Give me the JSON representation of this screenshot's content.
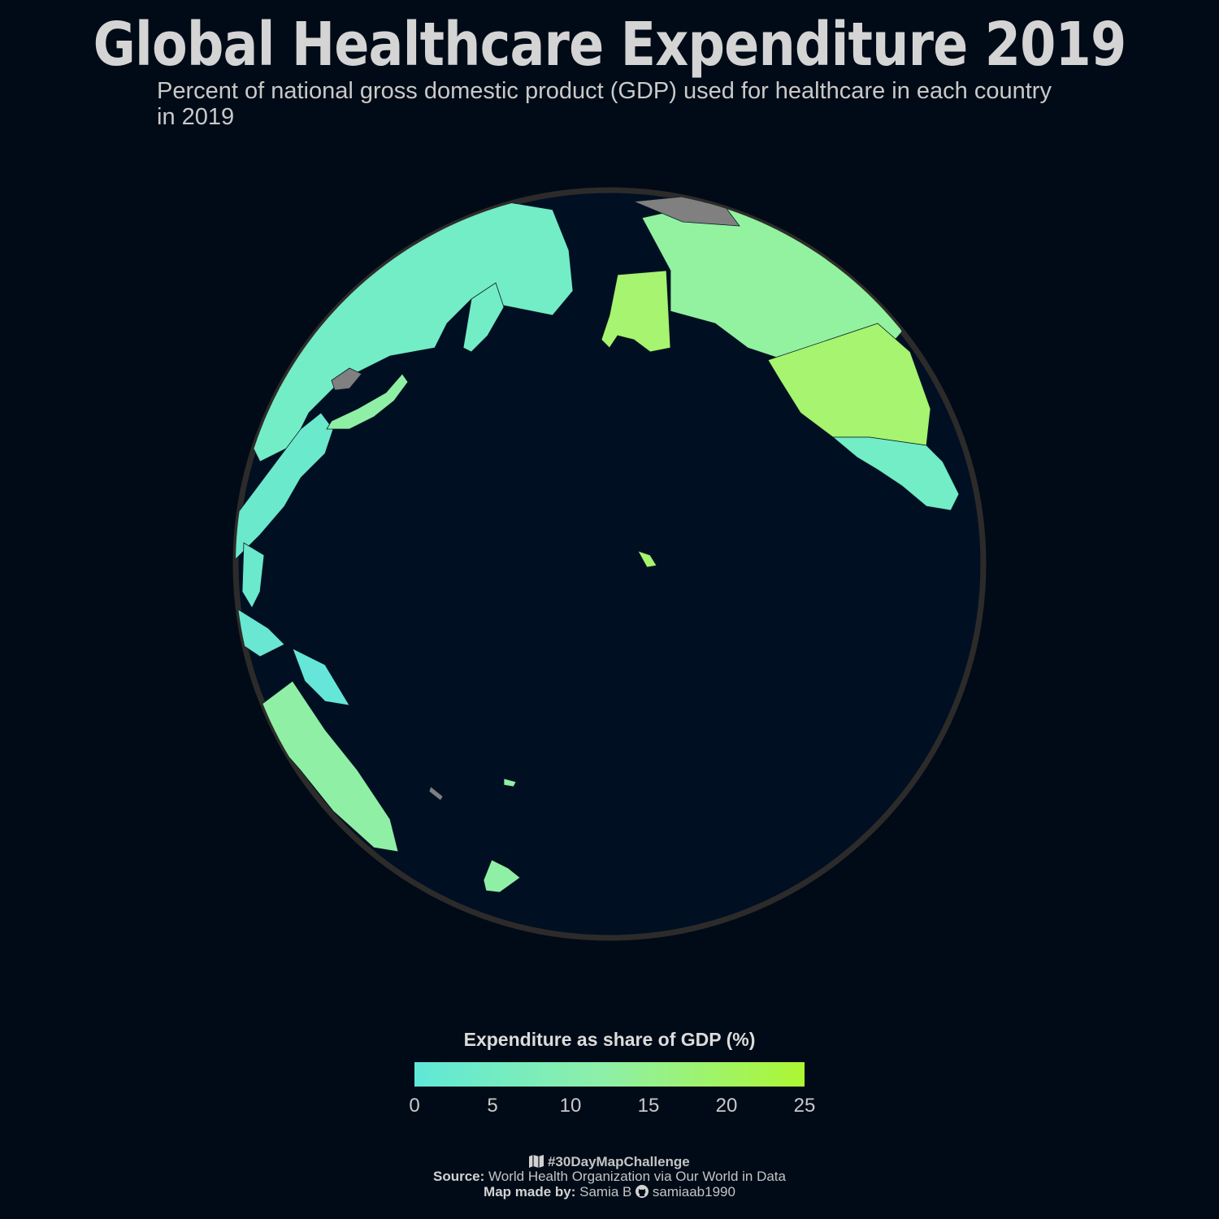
{
  "header": {
    "title": "Global Healthcare Expenditure 2019",
    "subtitle": "Percent of national gross domestic product (GDP) used for healthcare in each country in 2019"
  },
  "legend": {
    "title": "Expenditure as share of GDP (%)",
    "ticks": [
      "0",
      "5",
      "10",
      "15",
      "20",
      "25"
    ],
    "color_low": "#5fe8d8",
    "color_high": "#adf733"
  },
  "caption": {
    "hashtag": "#30DayMapChallenge",
    "source_label": "Source:",
    "source_text": "World Health Organization via Our World in Data",
    "author_label": "Map made by:",
    "author_name": "Samia B",
    "author_handle": "samiaab1990"
  },
  "colors": {
    "background": "#000b17",
    "ocean": "#010f22",
    "globe_outline": "#2d2b2a",
    "no_data": "#808080"
  },
  "map": {
    "projection": "orthographic",
    "center": "Pacific Ocean",
    "regions": [
      {
        "name": "Russia",
        "gdp_share": 5.6
      },
      {
        "name": "China",
        "gdp_share": 5.4
      },
      {
        "name": "Japan",
        "gdp_share": 10.7
      },
      {
        "name": "South Korea",
        "gdp_share": 8.2
      },
      {
        "name": "North Korea",
        "gdp_share": null
      },
      {
        "name": "Canada",
        "gdp_share": 10.8
      },
      {
        "name": "United States",
        "gdp_share": 16.8
      },
      {
        "name": "Mexico",
        "gdp_share": 5.4
      },
      {
        "name": "Greenland",
        "gdp_share": null
      },
      {
        "name": "Australia",
        "gdp_share": 9.9
      },
      {
        "name": "New Zealand",
        "gdp_share": 9.7
      },
      {
        "name": "Papua New Guinea",
        "gdp_share": 2.3
      },
      {
        "name": "Philippines",
        "gdp_share": 4.1
      },
      {
        "name": "Indonesia",
        "gdp_share": 2.9
      }
    ]
  }
}
